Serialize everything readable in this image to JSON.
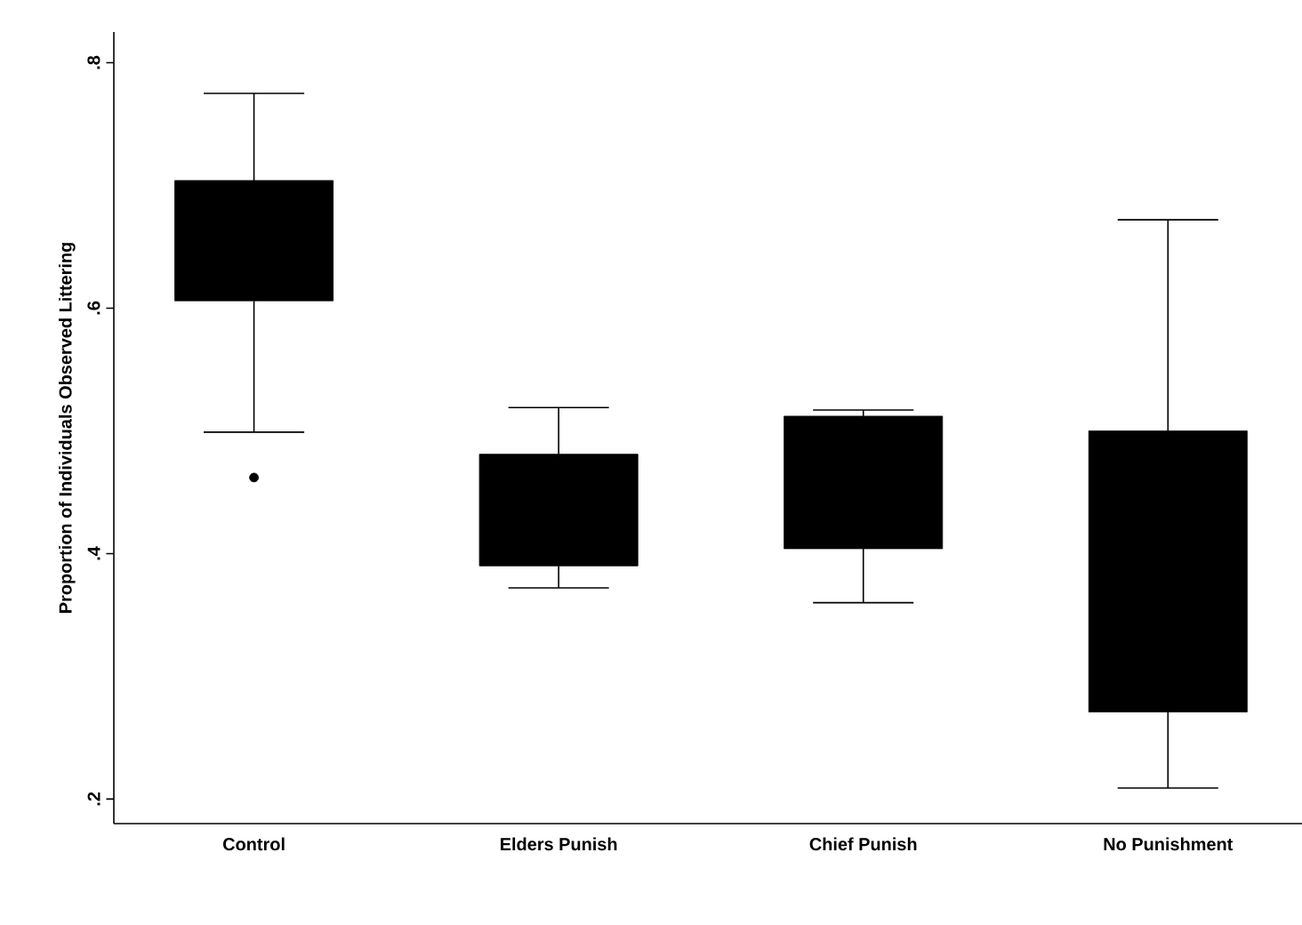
{
  "chart_data": {
    "type": "box",
    "ylabel": "Proportion of Individuals Observed Littering",
    "categories": [
      "Control",
      "Elders Punish",
      "Chief Punish",
      "No Punishment"
    ],
    "color": "#000000",
    "boxes": [
      {
        "low": 0.499,
        "q1": 0.606,
        "q3": 0.704,
        "high": 0.775,
        "outliers": [
          0.462
        ]
      },
      {
        "low": 0.372,
        "q1": 0.39,
        "q3": 0.481,
        "high": 0.519
      },
      {
        "low": 0.36,
        "q1": 0.404,
        "q3": 0.512,
        "high": 0.517
      },
      {
        "low": 0.209,
        "q1": 0.271,
        "q3": 0.5,
        "high": 0.672
      }
    ],
    "ylim": [
      0.18,
      0.825
    ],
    "yticks": [
      {
        "value": 0.2,
        "label": ".2"
      },
      {
        "value": 0.4,
        "label": ".4"
      },
      {
        "value": 0.6,
        "label": ".6"
      },
      {
        "value": 0.8,
        "label": ".8"
      }
    ],
    "grid": false
  }
}
